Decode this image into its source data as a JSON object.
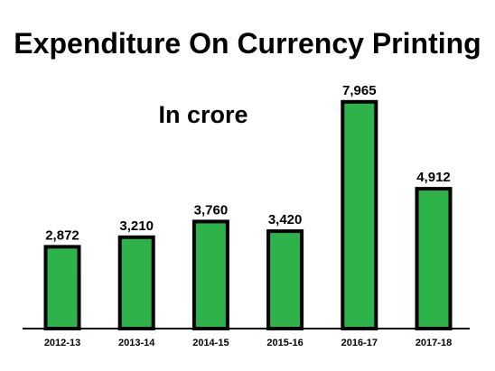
{
  "chart_data": {
    "type": "bar",
    "title": "Expenditure On Currency Printing",
    "subtitle": "In crore",
    "categories": [
      "2012-13",
      "2013-14",
      "2014-15",
      "2015-16",
      "2016-17",
      "2017-18"
    ],
    "values": [
      2872,
      3210,
      3760,
      3420,
      7965,
      4912
    ],
    "value_labels": [
      "2,872",
      "3,210",
      "3,760",
      "3,420",
      "7,965",
      "4,912"
    ],
    "xlabel": "",
    "ylabel": "",
    "ylim": [
      0,
      8720
    ],
    "grid": false,
    "legend": "none",
    "colors": {
      "bar_fill": "#2db34a",
      "bar_outline": "#000000",
      "axis": "#000000",
      "text": "#000000",
      "background": "#ffffff"
    }
  }
}
